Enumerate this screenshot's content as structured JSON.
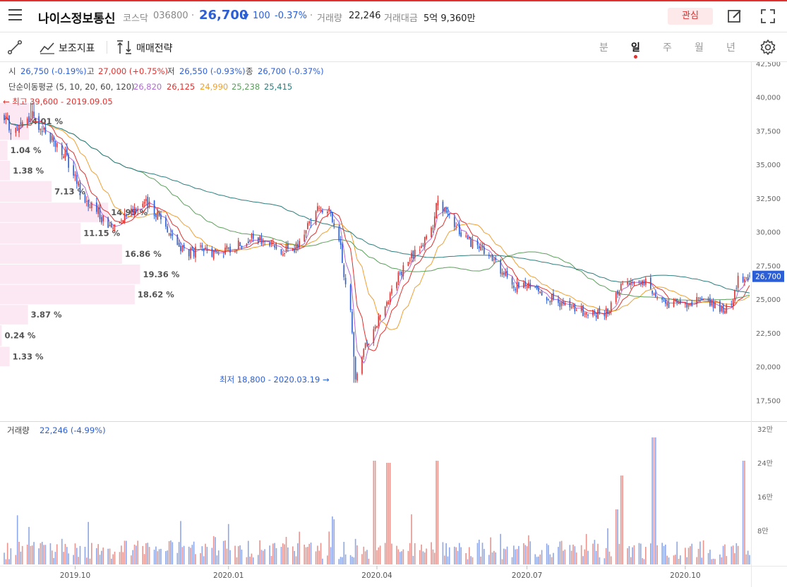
{
  "header": {
    "stock_name": "나이스정보통신",
    "market": "코스닥",
    "code": "036800",
    "sep": "·",
    "price": "26,700",
    "change_arrow": "▼",
    "change": "100",
    "change_pct": "-0.37%",
    "volume_label": "거래량",
    "volume": "22,246",
    "amount_label": "거래대금",
    "amount": "5억 9,360만",
    "fav_button": "관심"
  },
  "toolbar": {
    "indicator_label": "보조지표",
    "strategy_label": "매매전략",
    "periods": [
      "분",
      "일",
      "주",
      "월",
      "년"
    ],
    "active_period": "일"
  },
  "info": {
    "ohlc": [
      {
        "label": "시",
        "value": "26,750 (-0.19%)",
        "color": "#2c5fd6"
      },
      {
        "label": "고",
        "value": "27,000 (+0.75%)",
        "color": "#e0312f"
      },
      {
        "label": "저",
        "value": "26,550 (-0.93%)",
        "color": "#2c5fd6"
      },
      {
        "label": "종",
        "value": "26,700 (-0.37%)",
        "color": "#2c5fd6"
      }
    ],
    "ma_label": "단순이동평균 (5, 10, 20, 60, 120)",
    "ma_values": [
      {
        "value": "26,820",
        "color": "#b36ad8"
      },
      {
        "value": "26,125",
        "color": "#e0312f"
      },
      {
        "value": "24,990",
        "color": "#f0a030"
      },
      {
        "value": "25,238",
        "color": "#5aa05a"
      },
      {
        "value": "25,415",
        "color": "#2e7d7d"
      }
    ],
    "high_marker": "← 최고 39,600 - 2019.09.05",
    "low_marker": "최저 18,800 - 2020.03.19 →",
    "volume_info_label": "거래량",
    "volume_info_value": "22,246 (-4.99%)",
    "current_price_tag": "26,700"
  },
  "chart_data": {
    "type": "candlestick",
    "price_axis": {
      "ylim": [
        16000,
        42500
      ],
      "ticks": [
        17500,
        20000,
        22500,
        25000,
        27500,
        30000,
        32500,
        35000,
        37500,
        40000,
        42500
      ],
      "tick_labels": [
        "17,500",
        "20,000",
        "22,500",
        "25,000",
        "27,500",
        "30,000",
        "32,500",
        "35,000",
        "37,500",
        "40,000",
        "42,500"
      ]
    },
    "volume_axis": {
      "ylim": [
        0,
        320000
      ],
      "ticks": [
        80000,
        160000,
        240000,
        320000
      ],
      "tick_labels": [
        "8만",
        "16만",
        "24만",
        "32만"
      ]
    },
    "x_axis": {
      "labels": [
        "2019.10",
        "2020.01",
        "2020.04",
        "2020.07",
        "2020.10"
      ],
      "label_dates": [
        "2019-10-01",
        "2020-01-02",
        "2020-04-01",
        "2020-07-01",
        "2020-10-05"
      ]
    },
    "date_range": [
      "2019-08-19",
      "2020-11-13"
    ],
    "price_path": [
      [
        "2019-08-19",
        38200
      ],
      [
        "2019-08-26",
        37400
      ],
      [
        "2019-09-05",
        38600
      ],
      [
        "2019-09-16",
        37000
      ],
      [
        "2019-09-25",
        35600
      ],
      [
        "2019-10-02",
        33600
      ],
      [
        "2019-10-08",
        32200
      ],
      [
        "2019-10-15",
        31400
      ],
      [
        "2019-10-22",
        30300
      ],
      [
        "2019-10-29",
        31200
      ],
      [
        "2019-11-05",
        31800
      ],
      [
        "2019-11-12",
        32100
      ],
      [
        "2019-11-19",
        31500
      ],
      [
        "2019-11-25",
        30500
      ],
      [
        "2019-12-02",
        29000
      ],
      [
        "2019-12-09",
        28400
      ],
      [
        "2019-12-16",
        28600
      ],
      [
        "2019-12-23",
        28400
      ],
      [
        "2019-12-30",
        28500
      ],
      [
        "2020-01-06",
        28900
      ],
      [
        "2020-01-13",
        29500
      ],
      [
        "2020-01-20",
        29300
      ],
      [
        "2020-01-28",
        29000
      ],
      [
        "2020-02-04",
        28700
      ],
      [
        "2020-02-11",
        28600
      ],
      [
        "2020-02-18",
        30200
      ],
      [
        "2020-02-24",
        31700
      ],
      [
        "2020-03-02",
        31800
      ],
      [
        "2020-03-06",
        30300
      ],
      [
        "2020-03-10",
        28700
      ],
      [
        "2020-03-13",
        26000
      ],
      [
        "2020-03-16",
        24000
      ],
      [
        "2020-03-19",
        19300
      ],
      [
        "2020-03-24",
        21200
      ],
      [
        "2020-03-30",
        22800
      ],
      [
        "2020-04-06",
        24600
      ],
      [
        "2020-04-13",
        26500
      ],
      [
        "2020-04-20",
        27800
      ],
      [
        "2020-04-27",
        28900
      ],
      [
        "2020-05-04",
        30000
      ],
      [
        "2020-05-08",
        32500
      ],
      [
        "2020-05-13",
        31200
      ],
      [
        "2020-05-20",
        30200
      ],
      [
        "2020-05-27",
        29400
      ],
      [
        "2020-06-03",
        28600
      ],
      [
        "2020-06-10",
        27900
      ],
      [
        "2020-06-17",
        26800
      ],
      [
        "2020-06-24",
        25900
      ],
      [
        "2020-07-01",
        26000
      ],
      [
        "2020-07-08",
        25700
      ],
      [
        "2020-07-15",
        25100
      ],
      [
        "2020-07-22",
        24600
      ],
      [
        "2020-07-29",
        24300
      ],
      [
        "2020-08-05",
        24000
      ],
      [
        "2020-08-12",
        23900
      ],
      [
        "2020-08-19",
        24100
      ],
      [
        "2020-08-24",
        25300
      ],
      [
        "2020-08-28",
        26400
      ],
      [
        "2020-09-04",
        26300
      ],
      [
        "2020-09-11",
        26200
      ],
      [
        "2020-09-18",
        25300
      ],
      [
        "2020-09-25",
        24500
      ],
      [
        "2020-10-05",
        24700
      ],
      [
        "2020-10-12",
        24900
      ],
      [
        "2020-10-19",
        24800
      ],
      [
        "2020-10-26",
        24100
      ],
      [
        "2020-11-02",
        24600
      ],
      [
        "2020-11-06",
        26400
      ],
      [
        "2020-11-13",
        26700
      ]
    ],
    "high_low": {
      "high": {
        "price": 39600,
        "date": "2019-09-05"
      },
      "low": {
        "price": 18800,
        "date": "2020-03-19"
      }
    },
    "last_candle": {
      "open": 26750,
      "high": 27000,
      "low": 26550,
      "close": 26700,
      "volume": 22246
    },
    "moving_averages": [
      {
        "period": 5,
        "last": 26820,
        "color": "#b36ad8"
      },
      {
        "period": 10,
        "last": 26125,
        "color": "#e0312f"
      },
      {
        "period": 20,
        "last": 24990,
        "color": "#f0a030"
      },
      {
        "period": 60,
        "last": 25238,
        "color": "#5aa05a"
      },
      {
        "period": 120,
        "last": 25415,
        "color": "#2e7d7d"
      }
    ],
    "volume_profile": [
      {
        "price_low": 36800,
        "price_high": 39600,
        "pct": "4.01 %",
        "value": 4.01
      },
      {
        "price_low": 35300,
        "price_high": 36800,
        "pct": "1.04 %",
        "value": 1.04
      },
      {
        "price_low": 33800,
        "price_high": 35300,
        "pct": "1.38 %",
        "value": 1.38
      },
      {
        "price_low": 32200,
        "price_high": 33800,
        "pct": "7.13 %",
        "value": 7.13
      },
      {
        "price_low": 30700,
        "price_high": 32200,
        "pct": "14.95 %",
        "value": 14.95
      },
      {
        "price_low": 29100,
        "price_high": 30700,
        "pct": "11.15 %",
        "value": 11.15
      },
      {
        "price_low": 27600,
        "price_high": 29100,
        "pct": "16.86 %",
        "value": 16.86
      },
      {
        "price_low": 26100,
        "price_high": 27600,
        "pct": "19.36 %",
        "value": 19.36
      },
      {
        "price_low": 24600,
        "price_high": 26100,
        "pct": "18.62 %",
        "value": 18.62
      },
      {
        "price_low": 23100,
        "price_high": 24600,
        "pct": "3.87 %",
        "value": 3.87
      },
      {
        "price_low": 21500,
        "price_high": 23100,
        "pct": "0.24 %",
        "value": 0.24
      },
      {
        "price_low": 20000,
        "price_high": 21500,
        "pct": "1.33 %",
        "value": 1.33
      }
    ],
    "volume_spikes": [
      [
        "2020-03-30",
        245000
      ],
      [
        "2020-04-08",
        240000
      ],
      [
        "2020-05-08",
        245000
      ],
      [
        "2020-08-24",
        130000
      ],
      [
        "2020-08-28",
        210000
      ],
      [
        "2020-09-16",
        300000
      ],
      [
        "2020-11-09",
        245000
      ]
    ],
    "colors": {
      "up": "#e0312f",
      "down": "#2c5fd6",
      "vol_up": "#e8958f",
      "vol_down": "#8fa8ea",
      "profile": "#fce8f3"
    }
  }
}
